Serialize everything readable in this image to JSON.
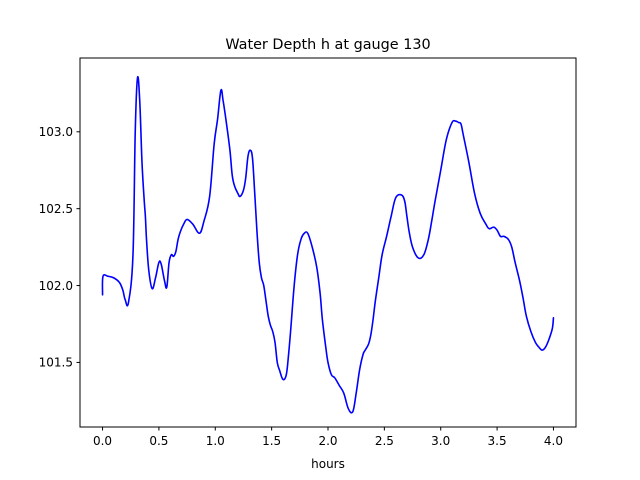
{
  "chart_data": {
    "type": "line",
    "title": "Water Depth h at gauge 130",
    "xlabel": "hours",
    "ylabel": "",
    "xlim": [
      -0.2,
      4.2
    ],
    "ylim": [
      101.08,
      103.48
    ],
    "grid": false,
    "legend": "none",
    "x_ticks": [
      0.0,
      0.5,
      1.0,
      1.5,
      2.0,
      2.5,
      3.0,
      3.5,
      4.0
    ],
    "x_tick_labels": [
      "0.0",
      "0.5",
      "1.0",
      "1.5",
      "2.0",
      "2.5",
      "3.0",
      "3.5",
      "4.0"
    ],
    "y_ticks": [
      101.5,
      102.0,
      102.5,
      103.0
    ],
    "y_tick_labels": [
      "101.5",
      "102.0",
      "102.5",
      "103.0"
    ],
    "series": [
      {
        "color": "#0000ff",
        "x": [
          0.0,
          0.004,
          0.05,
          0.1,
          0.15,
          0.18,
          0.2,
          0.23,
          0.27,
          0.29,
          0.31,
          0.33,
          0.35,
          0.37,
          0.38,
          0.39,
          0.41,
          0.44,
          0.47,
          0.5,
          0.52,
          0.55,
          0.57,
          0.59,
          0.61,
          0.63,
          0.65,
          0.67,
          0.69,
          0.72,
          0.75,
          0.8,
          0.86,
          0.9,
          0.95,
          0.99,
          1.02,
          1.05,
          1.07,
          1.1,
          1.13,
          1.15,
          1.17,
          1.2,
          1.22,
          1.25,
          1.27,
          1.29,
          1.31,
          1.33,
          1.35,
          1.37,
          1.39,
          1.41,
          1.43,
          1.45,
          1.47,
          1.49,
          1.51,
          1.53,
          1.55,
          1.57,
          1.6,
          1.63,
          1.65,
          1.67,
          1.7,
          1.73,
          1.76,
          1.79,
          1.82,
          1.86,
          1.9,
          1.93,
          1.95,
          1.98,
          2.0,
          2.03,
          2.06,
          2.1,
          2.14,
          2.18,
          2.22,
          2.25,
          2.28,
          2.31,
          2.33,
          2.36,
          2.38,
          2.4,
          2.42,
          2.45,
          2.48,
          2.52,
          2.56,
          2.6,
          2.65,
          2.68,
          2.7,
          2.72,
          2.75,
          2.8,
          2.85,
          2.89,
          2.92,
          2.95,
          3.0,
          3.05,
          3.1,
          3.13,
          3.16,
          3.18,
          3.2,
          3.25,
          3.3,
          3.35,
          3.4,
          3.43,
          3.47,
          3.5,
          3.53,
          3.56,
          3.6,
          3.63,
          3.66,
          3.7,
          3.73,
          3.76,
          3.8,
          3.84,
          3.87,
          3.9,
          3.93,
          3.96,
          3.99,
          4.0
        ],
        "y": [
          101.94,
          102.06,
          102.06,
          102.05,
          102.02,
          101.97,
          101.91,
          101.89,
          102.2,
          103.0,
          103.35,
          103.2,
          102.8,
          102.55,
          102.45,
          102.3,
          102.1,
          101.98,
          102.05,
          102.15,
          102.14,
          102.03,
          101.99,
          102.15,
          102.2,
          102.19,
          102.22,
          102.3,
          102.35,
          102.4,
          102.43,
          102.4,
          102.34,
          102.42,
          102.58,
          102.92,
          103.08,
          103.27,
          103.2,
          103.05,
          102.88,
          102.72,
          102.65,
          102.6,
          102.58,
          102.62,
          102.7,
          102.84,
          102.88,
          102.83,
          102.6,
          102.35,
          102.15,
          102.05,
          102.0,
          101.9,
          101.8,
          101.74,
          101.7,
          101.63,
          101.5,
          101.45,
          101.39,
          101.42,
          101.55,
          101.72,
          102.0,
          102.2,
          102.3,
          102.34,
          102.34,
          102.25,
          102.12,
          101.95,
          101.78,
          101.6,
          101.5,
          101.42,
          101.4,
          101.35,
          101.3,
          101.2,
          101.18,
          101.3,
          101.45,
          101.55,
          101.58,
          101.62,
          101.68,
          101.78,
          101.9,
          102.05,
          102.2,
          102.32,
          102.45,
          102.57,
          102.59,
          102.55,
          102.45,
          102.35,
          102.25,
          102.18,
          102.2,
          102.3,
          102.42,
          102.55,
          102.75,
          102.95,
          103.06,
          103.07,
          103.06,
          103.05,
          102.98,
          102.8,
          102.6,
          102.47,
          102.4,
          102.37,
          102.38,
          102.36,
          102.32,
          102.32,
          102.3,
          102.25,
          102.15,
          102.03,
          101.92,
          101.8,
          101.7,
          101.63,
          101.6,
          101.58,
          101.6,
          101.65,
          101.72,
          101.79
        ]
      }
    ]
  }
}
